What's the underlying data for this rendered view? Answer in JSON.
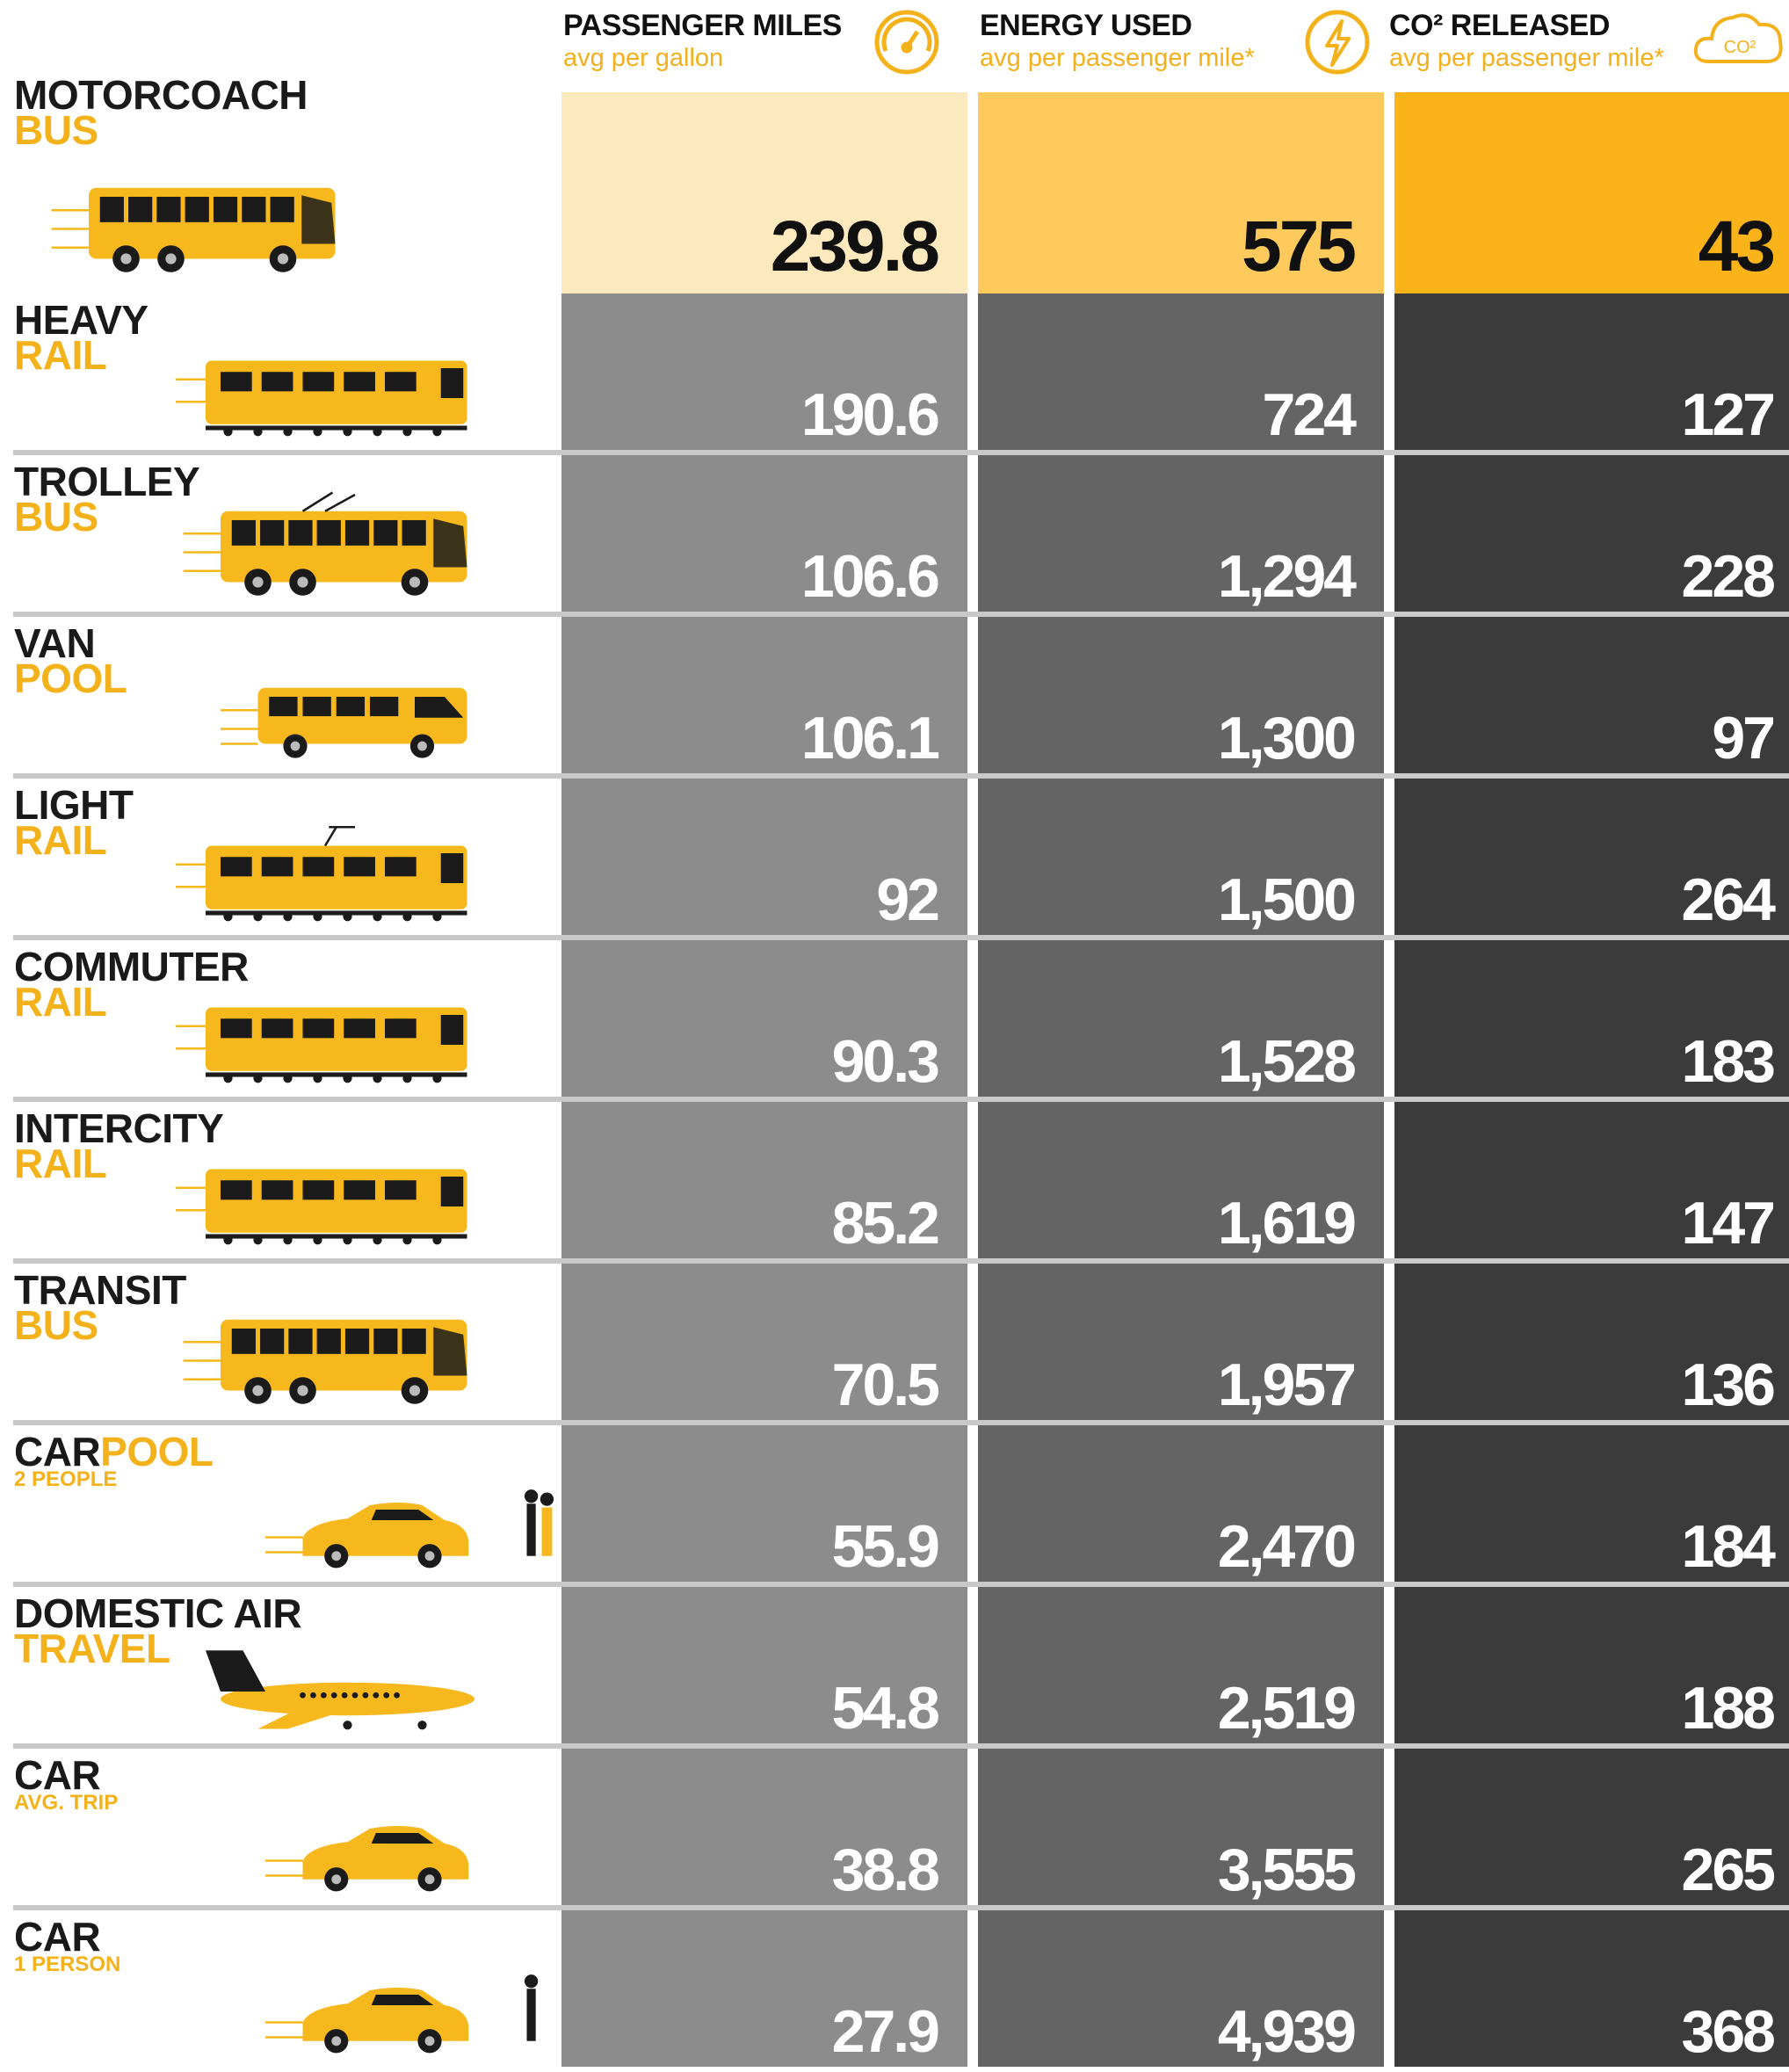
{
  "columns": [
    {
      "title": "PASSENGER MILES",
      "subtitle": "avg per gallon"
    },
    {
      "title": "ENERGY USED",
      "subtitle": "avg per passenger mile*"
    },
    {
      "title": "CO² RELEASED",
      "subtitle": "avg per passenger mile*",
      "icon_text": "CO²"
    }
  ],
  "rows": [
    {
      "dark": "MOTORCOACH",
      "accent": "BUS",
      "values": [
        "239.8",
        "575",
        "43"
      ]
    },
    {
      "dark": "HEAVY",
      "accent": "RAIL",
      "values": [
        "190.6",
        "724",
        "127"
      ]
    },
    {
      "dark": "TROLLEY",
      "accent": "BUS",
      "values": [
        "106.6",
        "1,294",
        "228"
      ]
    },
    {
      "dark": "VAN",
      "accent": "POOL",
      "values": [
        "106.1",
        "1,300",
        "97"
      ]
    },
    {
      "dark": "LIGHT",
      "accent": "RAIL",
      "values": [
        "92",
        "1,500",
        "264"
      ]
    },
    {
      "dark": "COMMUTER",
      "accent": "RAIL",
      "values": [
        "90.3",
        "1,528",
        "183"
      ]
    },
    {
      "dark": "INTERCITY",
      "accent": "RAIL",
      "values": [
        "85.2",
        "1,619",
        "147"
      ]
    },
    {
      "dark": "TRANSIT",
      "accent": "BUS",
      "values": [
        "70.5",
        "1,957",
        "136"
      ]
    },
    {
      "dark": "CAR",
      "accent": "POOL",
      "note": "2 PEOPLE",
      "values": [
        "55.9",
        "2,470",
        "184"
      ]
    },
    {
      "dark": "DOMESTIC AIR",
      "accent": "TRAVEL",
      "values": [
        "54.8",
        "2,519",
        "188"
      ]
    },
    {
      "dark": "CAR",
      "note": "AVG. TRIP",
      "values": [
        "38.8",
        "3,555",
        "265"
      ]
    },
    {
      "dark": "CAR",
      "note": "1 PERSON",
      "values": [
        "27.9",
        "4,939",
        "368"
      ]
    }
  ]
}
